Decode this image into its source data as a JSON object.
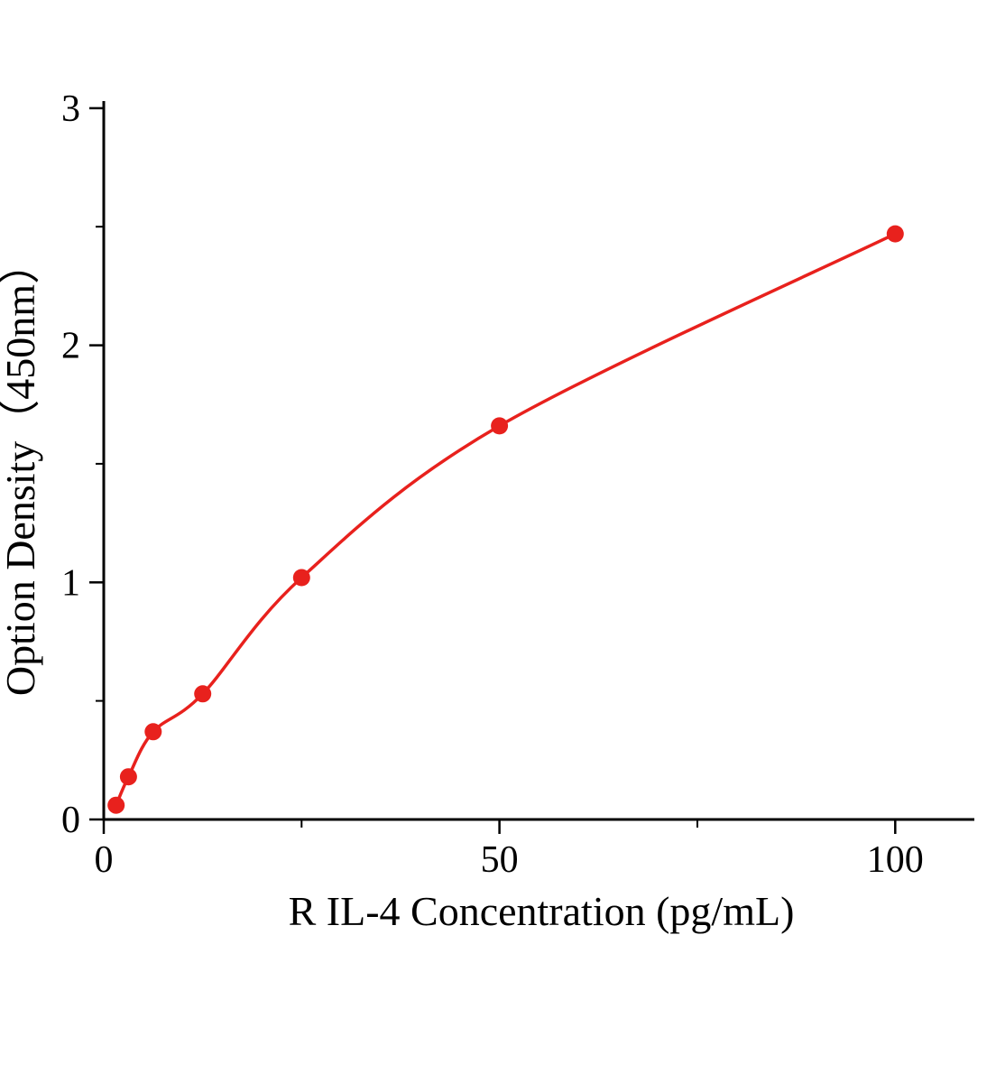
{
  "chart_data": {
    "type": "scatter",
    "title": "",
    "xlabel": "R IL-4 Concentration (pg/mL)",
    "ylabel": "Option Density（450nm）",
    "x": [
      1.56,
      3.12,
      6.25,
      12.5,
      25,
      50,
      100
    ],
    "y": [
      0.06,
      0.18,
      0.37,
      0.53,
      1.02,
      1.66,
      2.47
    ],
    "curve_style": "smooth saturation fit through points",
    "xlim": [
      0,
      110
    ],
    "ylim": [
      0,
      3.03
    ],
    "x_major_ticks": [
      0,
      50,
      100
    ],
    "x_tick_labels": [
      "0",
      "50",
      "100"
    ],
    "x_minor_ticks": [
      25,
      75
    ],
    "y_major_ticks": [
      0,
      1,
      2,
      3
    ],
    "y_tick_labels": [
      "0",
      "1",
      "2",
      "3"
    ],
    "y_minor_ticks": [
      0.5,
      1.5,
      2.5
    ],
    "grid": false,
    "legend": "none",
    "colors": {
      "point_color": "#e8211d",
      "line_color": "#e8211d",
      "axis_color": "#000000"
    }
  }
}
